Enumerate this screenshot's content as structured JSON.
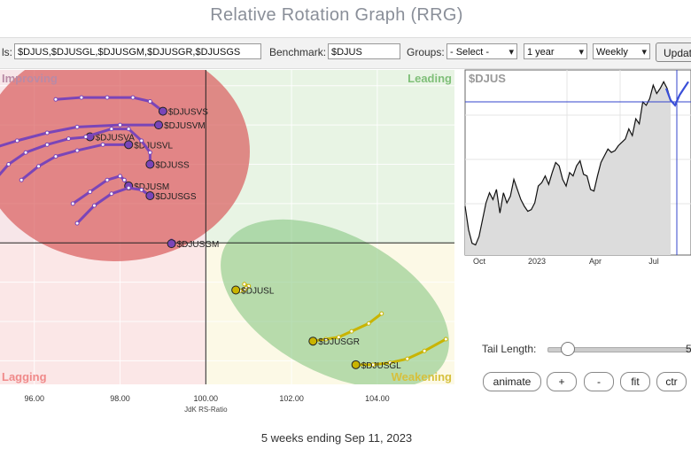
{
  "page_title": "Relative Rotation Graph (RRG)",
  "toolbar": {
    "symbols_label": "ls:",
    "symbols_value": "$DJUS,$DJUSGL,$DJUSGM,$DJUSGR,$DJUSGS",
    "benchmark_label": "Benchmark:",
    "benchmark_value": "$DJUS",
    "groups_label": "Groups:",
    "groups_value": "- Select -",
    "period_value": "1 year",
    "frequency_value": "Weekly",
    "update_label": "Updat"
  },
  "colors": {
    "improving": "#f7e6e9",
    "leading": "#e8f4e4",
    "lagging": "#fbe7e7",
    "weakening": "#fcf9e6",
    "red_ellipse": "#d95f5f",
    "green_ellipse": "#7ec27a",
    "purple": "#7a45b8",
    "yellow": "#c9b400"
  },
  "chart_data": [
    {
      "type": "scatter",
      "xlabel": "JdK RS-Ratio",
      "xlim": [
        95.2,
        105.8
      ],
      "ylim": [
        96.4,
        104.4
      ],
      "x_ticks": [
        "96.00",
        "98.00",
        "100.00",
        "102.00",
        "104.00"
      ],
      "x_tick_values": [
        96,
        98,
        100,
        102,
        104
      ],
      "center": [
        100,
        100
      ],
      "quadrants": {
        "improving": "Improving",
        "leading": "Leading",
        "lagging": "Lagging",
        "weakening": "Weakening"
      },
      "series": [
        {
          "name": "$DJUSVM",
          "color": "purple",
          "points": [
            [
              95.0,
              102.4
            ],
            [
              95.6,
              102.6
            ],
            [
              96.3,
              102.8
            ],
            [
              97.0,
              102.95
            ],
            [
              98.0,
              103.0
            ],
            [
              98.9,
              103.0
            ]
          ]
        },
        {
          "name": "$DJUSVS",
          "color": "purple",
          "points": [
            [
              96.5,
              103.65
            ],
            [
              97.1,
              103.7
            ],
            [
              97.7,
              103.7
            ],
            [
              98.3,
              103.7
            ],
            [
              98.7,
              103.6
            ],
            [
              99.0,
              103.35
            ]
          ]
        },
        {
          "name": "$DJUSVA",
          "color": "purple",
          "points": [
            [
              95.0,
              101.5
            ],
            [
              95.4,
              102.0
            ],
            [
              95.8,
              102.3
            ],
            [
              96.3,
              102.5
            ],
            [
              96.8,
              102.65
            ],
            [
              97.3,
              102.7
            ]
          ]
        },
        {
          "name": "$DJUSVL",
          "color": "purple",
          "points": [
            [
              95.7,
              101.6
            ],
            [
              96.1,
              101.95
            ],
            [
              96.5,
              102.2
            ],
            [
              97.0,
              102.35
            ],
            [
              97.6,
              102.5
            ],
            [
              98.2,
              102.5
            ]
          ]
        },
        {
          "name": "$DJUSS",
          "color": "purple",
          "points": [
            [
              97.2,
              102.7
            ],
            [
              97.8,
              102.9
            ],
            [
              98.2,
              102.9
            ],
            [
              98.5,
              102.6
            ],
            [
              98.7,
              102.3
            ],
            [
              98.7,
              102.0
            ]
          ]
        },
        {
          "name": "$DJUSM",
          "color": "purple",
          "points": [
            [
              96.9,
              101.0
            ],
            [
              97.3,
              101.3
            ],
            [
              97.7,
              101.6
            ],
            [
              98.0,
              101.7
            ],
            [
              98.1,
              101.6
            ],
            [
              98.2,
              101.45
            ]
          ]
        },
        {
          "name": "$DJUSGS",
          "color": "purple",
          "points": [
            [
              97.0,
              100.5
            ],
            [
              97.4,
              100.95
            ],
            [
              97.8,
              101.25
            ],
            [
              98.2,
              101.4
            ],
            [
              98.5,
              101.35
            ],
            [
              98.7,
              101.2
            ]
          ]
        },
        {
          "name": "$DJUSGM",
          "color": "purple",
          "points": [
            [
              99.2,
              100.0
            ],
            [
              99.2,
              100.05
            ],
            [
              99.25,
              100.02
            ],
            [
              99.2,
              99.98
            ],
            [
              99.2,
              100.0
            ],
            [
              99.2,
              99.98
            ]
          ]
        },
        {
          "name": "$DJUSL",
          "color": "yellow",
          "points": [
            [
              100.9,
              98.95
            ],
            [
              101.0,
              98.9
            ],
            [
              100.95,
              98.85
            ],
            [
              100.9,
              98.8
            ],
            [
              100.8,
              98.78
            ],
            [
              100.7,
              98.8
            ]
          ]
        },
        {
          "name": "$DJUSGR",
          "color": "yellow",
          "points": [
            [
              104.1,
              98.2
            ],
            [
              103.8,
              97.95
            ],
            [
              103.4,
              97.75
            ],
            [
              103.1,
              97.6
            ],
            [
              102.8,
              97.55
            ],
            [
              102.5,
              97.5
            ]
          ]
        },
        {
          "name": "$DJUSGL",
          "color": "yellow",
          "points": [
            [
              105.6,
              97.55
            ],
            [
              105.1,
              97.25
            ],
            [
              104.7,
              97.05
            ],
            [
              104.3,
              96.95
            ],
            [
              103.9,
              96.9
            ],
            [
              103.5,
              96.9
            ]
          ]
        }
      ]
    },
    {
      "type": "area",
      "title": "$DJUS",
      "x_ticks": [
        "Oct",
        "2023",
        "Apr",
        "Jul"
      ],
      "values": [
        54,
        40,
        32,
        31,
        36,
        46,
        56,
        62,
        58,
        64,
        50,
        62,
        56,
        60,
        70,
        64,
        58,
        54,
        51,
        52,
        56,
        66,
        68,
        72,
        67,
        74,
        80,
        78,
        70,
        66,
        74,
        72,
        78,
        81,
        73,
        72,
        64,
        63,
        72,
        80,
        84,
        88,
        86,
        87,
        90,
        92,
        94,
        100,
        96,
        106,
        103,
        116,
        114,
        118,
        126,
        121,
        124,
        128,
        124,
        117
      ],
      "tail_values": [
        124,
        117,
        114,
        120,
        124,
        128
      ],
      "ylim": [
        25,
        135
      ]
    }
  ],
  "controls": {
    "tail_length_label": "Tail Length:",
    "tail_length_value": "5",
    "animate_label": "animate",
    "plus_label": "+",
    "minus_label": "-",
    "fit_label": "fit",
    "ctr_label": "ctr"
  },
  "footer_text": "5 weeks ending Sep 11, 2023"
}
